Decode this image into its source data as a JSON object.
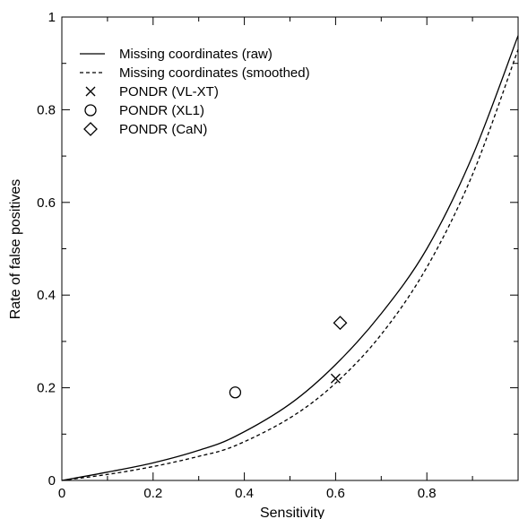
{
  "chart_data": {
    "type": "line",
    "title": "",
    "xlabel": "Sensitivity",
    "ylabel": "Rate of false positives",
    "xlim": [
      0,
      1
    ],
    "ylim": [
      0,
      1
    ],
    "x_ticks": [
      "0",
      "0.2",
      "0.4",
      "0.6",
      "0.8"
    ],
    "y_ticks": [
      "0",
      "0.2",
      "0.4",
      "0.6",
      "0.8",
      "1"
    ],
    "grid": false,
    "legend_position": "top-left",
    "series": [
      {
        "name": "Missing coordinates (raw)",
        "style": "solid",
        "x": [
          0,
          0.1,
          0.2,
          0.3,
          0.38,
          0.5,
          0.6,
          0.7,
          0.8,
          0.9,
          1.0
        ],
        "y": [
          0,
          0.018,
          0.038,
          0.065,
          0.095,
          0.165,
          0.25,
          0.36,
          0.5,
          0.7,
          0.96
        ]
      },
      {
        "name": "Missing coordinates (smoothed)",
        "style": "dashed",
        "x": [
          0,
          0.1,
          0.2,
          0.3,
          0.38,
          0.5,
          0.6,
          0.7,
          0.8,
          0.9,
          1.0
        ],
        "y": [
          0,
          0.013,
          0.03,
          0.052,
          0.075,
          0.135,
          0.21,
          0.315,
          0.46,
          0.66,
          0.93
        ]
      }
    ],
    "points": [
      {
        "name": "PONDR (VL-XT)",
        "marker": "x",
        "x": 0.6,
        "y": 0.22
      },
      {
        "name": "PONDR (XL1)",
        "marker": "circle",
        "x": 0.38,
        "y": 0.19
      },
      {
        "name": "PONDR (CaN)",
        "marker": "diamond",
        "x": 0.61,
        "y": 0.34
      }
    ]
  }
}
